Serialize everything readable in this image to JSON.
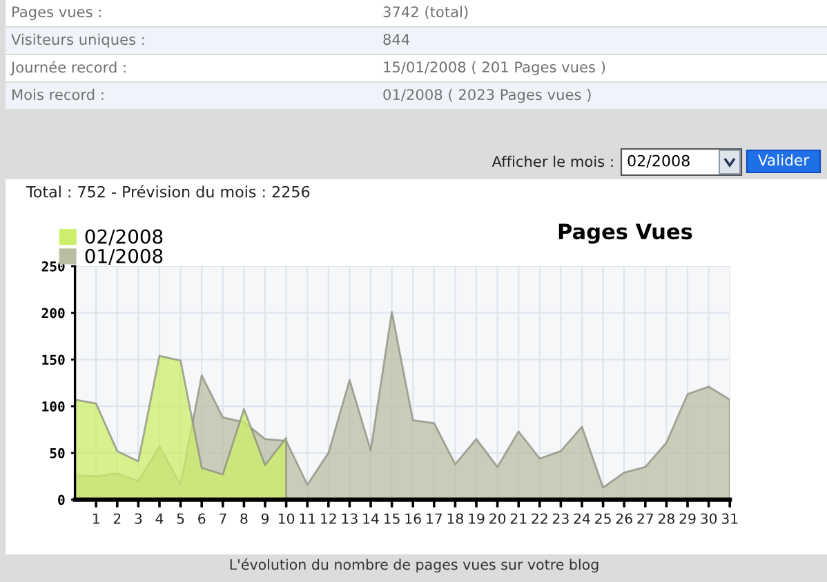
{
  "chart_data": {
    "type": "area",
    "title": "Pages Vues",
    "subtitle": "Total : 752 - Prévision du mois : 2256",
    "annotations": [
      "Pages vues :",
      "3742 (total)",
      "Visiteurs uniques :",
      "844",
      "Journée record :",
      "15/01/2008 ( 201 Pages vues )",
      "Mois record :",
      "01/2008 ( 2023 Pages vues )",
      "Afficher le mois :",
      "02/2008",
      "Valider",
      "L'évolution du nombre de pages vues sur votre blog"
    ],
    "x": [
      0,
      1,
      2,
      3,
      4,
      5,
      6,
      7,
      8,
      9,
      10,
      11,
      12,
      13,
      14,
      15,
      16,
      17,
      18,
      19,
      20,
      21,
      22,
      23,
      24,
      25,
      26,
      27,
      28,
      29,
      30,
      31
    ],
    "series": [
      {
        "name": "02/2008",
        "color": "#cdee6a",
        "x": [
          0,
          1,
          2,
          3,
          4,
          5,
          6,
          7,
          8,
          9,
          10
        ],
        "values": [
          107,
          103,
          52,
          41,
          154,
          149,
          34,
          27,
          97,
          37,
          66
        ]
      },
      {
        "name": "01/2008",
        "color": "#b9bda2",
        "values": [
          26,
          25,
          28,
          20,
          57,
          16,
          133,
          88,
          83,
          65,
          63,
          16,
          50,
          128,
          53,
          201,
          85,
          82,
          38,
          65,
          35,
          73,
          44,
          52,
          78,
          13,
          29,
          35,
          61,
          113,
          121,
          107
        ]
      }
    ],
    "xlim": [
      0,
      31
    ],
    "xticks": [
      1,
      2,
      3,
      4,
      5,
      6,
      7,
      8,
      9,
      10,
      11,
      12,
      13,
      14,
      15,
      16,
      17,
      18,
      19,
      20,
      21,
      22,
      23,
      24,
      25,
      26,
      27,
      28,
      29,
      30,
      31
    ],
    "ylim": [
      0,
      250
    ],
    "yticks": [
      0,
      50,
      100,
      150,
      200,
      250
    ],
    "grid": true,
    "legend": "top left"
  }
}
